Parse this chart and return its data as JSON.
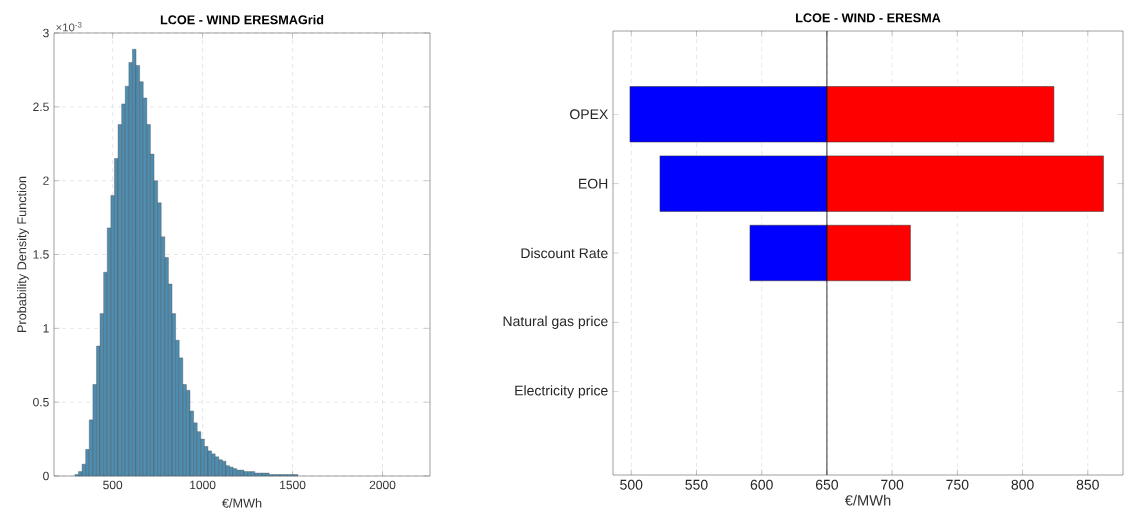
{
  "chart_data": [
    {
      "type": "histogram",
      "title": "LCOE - WIND ERESMAGrid",
      "xlabel": "€/MWh",
      "ylabel": "Probability Density Function",
      "color": "#4f8db0",
      "bins": [
        290,
        310,
        330,
        350,
        370,
        390,
        410,
        430,
        450,
        470,
        490,
        510,
        530,
        550,
        570,
        590,
        610,
        630,
        650,
        670,
        690,
        710,
        730,
        750,
        770,
        790,
        810,
        830,
        850,
        870,
        890,
        910,
        930,
        950,
        970,
        990,
        1010,
        1030,
        1050,
        1070,
        1090,
        1110,
        1130,
        1150,
        1170,
        1190,
        1210,
        1230,
        1250,
        1270,
        1290,
        1310,
        1330,
        1350,
        1370,
        1390,
        1410,
        1430,
        1450,
        1470,
        1490,
        1510,
        1530
      ],
      "values": [
        0.01,
        0.03,
        0.08,
        0.18,
        0.38,
        0.62,
        0.88,
        1.1,
        1.38,
        1.68,
        1.9,
        2.15,
        2.38,
        2.52,
        2.64,
        2.8,
        2.89,
        2.78,
        2.67,
        2.56,
        2.38,
        2.18,
        2.0,
        1.85,
        1.62,
        1.48,
        1.3,
        1.1,
        0.92,
        0.8,
        0.62,
        0.58,
        0.44,
        0.36,
        0.3,
        0.25,
        0.2,
        0.17,
        0.15,
        0.13,
        0.11,
        0.1,
        0.07,
        0.06,
        0.05,
        0.04,
        0.04,
        0.03,
        0.03,
        0.03,
        0.02,
        0.02,
        0.02,
        0.02,
        0.01,
        0.01,
        0.01,
        0.01,
        0.01,
        0.01,
        0.01,
        0.01
      ],
      "xlim": [
        174,
        2264
      ],
      "xticks": [
        500,
        1000,
        1500,
        2000
      ],
      "ylim": [
        0,
        3
      ],
      "yticks": [
        0,
        0.5,
        1,
        1.5,
        2,
        2.5,
        3
      ],
      "grid": true,
      "annotations": [
        "×10$^{-3}$"
      ]
    },
    {
      "type": "bar",
      "orientation": "horizontal",
      "title": "LCOE - WIND - ERESMA",
      "xlabel": "€/MWh",
      "categories": [
        "OPEX",
        "EOH",
        "Discount Rate",
        "Natural gas price",
        "Electricity price"
      ],
      "series": [
        {
          "color": "#0000ff",
          "base": [
            650,
            650,
            650,
            null,
            null
          ],
          "values": [
            -151,
            -128,
            -59,
            null,
            null
          ]
        },
        {
          "color": "#ff0000",
          "base": [
            650,
            650,
            650,
            null,
            null
          ],
          "values": [
            174,
            212,
            64,
            null,
            null
          ]
        }
      ],
      "xlim": [
        486,
        877
      ],
      "xticks": [
        500,
        550,
        600,
        650,
        700,
        750,
        800,
        850
      ],
      "grid": "x",
      "ref_lines": [
        {
          "axis": "x",
          "value": 650,
          "color": "#000000"
        }
      ]
    }
  ]
}
